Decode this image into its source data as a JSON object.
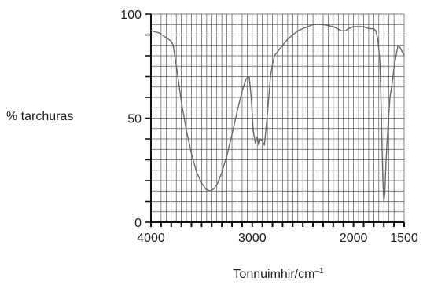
{
  "chart_data": {
    "type": "line",
    "title": "",
    "xlabel": "Tonnuimhir/cm",
    "xlabel_superscript": "–1",
    "ylabel": "% tarchuras",
    "xlim": [
      4000,
      1500
    ],
    "ylim": [
      0,
      100
    ],
    "x_reversed": true,
    "grid": true,
    "legend": "none",
    "x_ticks": [
      {
        "value": 4000,
        "label": "4000"
      },
      {
        "value": 3000,
        "label": "3000"
      },
      {
        "value": 2000,
        "label": "2000"
      },
      {
        "value": 1500,
        "label": "1500"
      }
    ],
    "y_ticks": [
      {
        "value": 0,
        "label": "0"
      },
      {
        "value": 50,
        "label": "50"
      },
      {
        "value": 100,
        "label": "100"
      }
    ],
    "series": [
      {
        "color": "#6a6a6a",
        "x": [
          4000,
          3920,
          3860,
          3800,
          3780,
          3740,
          3700,
          3650,
          3600,
          3550,
          3500,
          3460,
          3420,
          3380,
          3340,
          3300,
          3250,
          3200,
          3150,
          3100,
          3060,
          3030,
          3010,
          2990,
          2970,
          2950,
          2935,
          2920,
          2900,
          2880,
          2850,
          2820,
          2800,
          2780,
          2750,
          2700,
          2650,
          2600,
          2550,
          2500,
          2400,
          2300,
          2200,
          2120,
          2080,
          2050,
          2000,
          1950,
          1900,
          1850,
          1800,
          1780,
          1760,
          1740,
          1730,
          1720,
          1710,
          1700,
          1690,
          1680,
          1660,
          1640,
          1620,
          1600,
          1580,
          1560,
          1540,
          1520,
          1500
        ],
        "y": [
          92,
          91,
          89,
          87,
          85,
          72,
          58,
          44,
          33,
          24,
          19,
          16,
          15,
          16,
          19,
          24,
          32,
          42,
          53,
          63,
          69,
          70,
          60,
          44,
          38,
          41,
          37,
          40,
          39,
          37,
          52,
          70,
          76,
          80,
          82,
          85,
          88,
          90,
          92,
          93,
          95,
          95,
          94,
          92,
          92,
          93,
          94,
          94,
          94,
          93,
          93,
          92,
          88,
          78,
          62,
          40,
          20,
          10,
          14,
          28,
          46,
          60,
          66,
          74,
          80,
          85,
          84,
          82,
          80
        ]
      }
    ]
  }
}
